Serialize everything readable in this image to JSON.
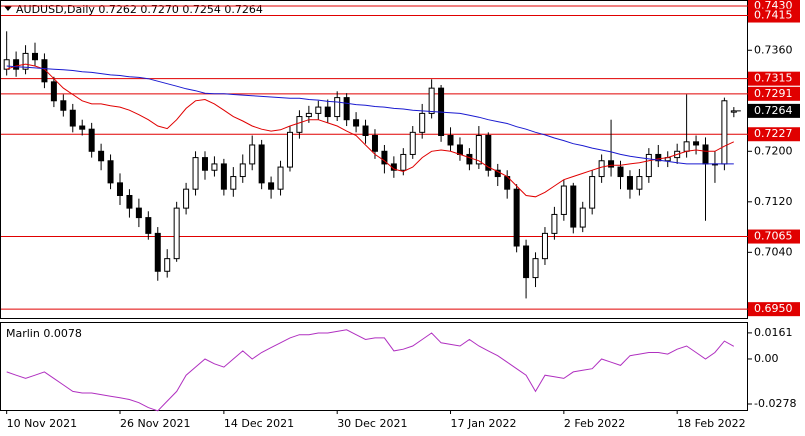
{
  "chart_data": {
    "type": "candlestick",
    "title": "AUDUSD,Daily  0.7262 0.7270 0.7254 0.7264",
    "xlim": [
      -0.6,
      78.5
    ],
    "xticks": [
      {
        "value": 0,
        "label": "10 Nov 2021"
      },
      {
        "value": 12,
        "label": "26 Nov 2021"
      },
      {
        "value": 23,
        "label": "14 Dec 2021"
      },
      {
        "value": 35,
        "label": "30 Dec 2021"
      },
      {
        "value": 47,
        "label": "17 Jan 2022"
      },
      {
        "value": 59,
        "label": "2 Feb 2022"
      },
      {
        "value": 71,
        "label": "18 Feb 2022"
      }
    ],
    "ylim": [
      0.6936,
      0.7438
    ],
    "yticks": [
      {
        "value": 0.736,
        "label": "0.7360"
      },
      {
        "value": 0.72,
        "label": "0.7200"
      },
      {
        "value": 0.712,
        "label": "0.7120"
      },
      {
        "value": 0.704,
        "label": "0.7040"
      }
    ],
    "up_color": "#ffffff",
    "down_color": "#000000",
    "open": [
      0.733,
      0.7345,
      0.733,
      0.7355,
      0.7345,
      0.731,
      0.728,
      0.7265,
      0.724,
      0.7235,
      0.72,
      0.7185,
      0.715,
      0.713,
      0.711,
      0.7095,
      0.707,
      0.701,
      0.703,
      0.711,
      0.714,
      0.719,
      0.717,
      0.718,
      0.714,
      0.716,
      0.718,
      0.721,
      0.715,
      0.714,
      0.7175,
      0.723,
      0.7255,
      0.726,
      0.727,
      0.7255,
      0.7285,
      0.725,
      0.724,
      0.7225,
      0.72,
      0.718,
      0.717,
      0.7195,
      0.723,
      0.726,
      0.73,
      0.7225,
      0.721,
      0.7195,
      0.718,
      0.7225,
      0.717,
      0.716,
      0.714,
      0.705,
      0.7,
      0.703,
      0.707,
      0.71,
      0.7145,
      0.708,
      0.711,
      0.716,
      0.7185,
      0.7175,
      0.716,
      0.714,
      0.716,
      0.7195,
      0.7185,
      0.719,
      0.72,
      0.7215,
      0.721,
      0.718,
      0.718,
      0.7262
    ],
    "high": [
      0.739,
      0.7358,
      0.7368,
      0.7372,
      0.7355,
      0.7318,
      0.729,
      0.7275,
      0.725,
      0.7245,
      0.7212,
      0.7195,
      0.7165,
      0.714,
      0.7125,
      0.7105,
      0.708,
      0.7045,
      0.712,
      0.715,
      0.72,
      0.72,
      0.7192,
      0.7188,
      0.7175,
      0.7195,
      0.7225,
      0.7218,
      0.716,
      0.7185,
      0.724,
      0.7265,
      0.7272,
      0.728,
      0.7282,
      0.7295,
      0.7292,
      0.7262,
      0.725,
      0.7235,
      0.721,
      0.7192,
      0.7205,
      0.724,
      0.7275,
      0.7314,
      0.7305,
      0.7238,
      0.7222,
      0.7205,
      0.724,
      0.723,
      0.718,
      0.717,
      0.7148,
      0.706,
      0.704,
      0.708,
      0.7112,
      0.7155,
      0.715,
      0.712,
      0.717,
      0.7195,
      0.725,
      0.7185,
      0.717,
      0.7172,
      0.7205,
      0.721,
      0.72,
      0.7212,
      0.729,
      0.7225,
      0.7222,
      0.72,
      0.7285,
      0.727
    ],
    "low": [
      0.732,
      0.7318,
      0.7322,
      0.7335,
      0.73,
      0.727,
      0.7255,
      0.723,
      0.7225,
      0.719,
      0.717,
      0.714,
      0.7115,
      0.7095,
      0.708,
      0.706,
      0.6995,
      0.7,
      0.7025,
      0.71,
      0.713,
      0.7155,
      0.716,
      0.713,
      0.7128,
      0.715,
      0.717,
      0.714,
      0.7125,
      0.713,
      0.7168,
      0.722,
      0.7245,
      0.725,
      0.7245,
      0.7248,
      0.724,
      0.723,
      0.7212,
      0.7188,
      0.7165,
      0.7158,
      0.7162,
      0.7188,
      0.722,
      0.7252,
      0.7215,
      0.72,
      0.7185,
      0.717,
      0.7172,
      0.716,
      0.7145,
      0.7125,
      0.704,
      0.6967,
      0.6985,
      0.702,
      0.706,
      0.709,
      0.707,
      0.7072,
      0.71,
      0.715,
      0.716,
      0.714,
      0.7125,
      0.713,
      0.715,
      0.7175,
      0.7175,
      0.718,
      0.719,
      0.7195,
      0.709,
      0.715,
      0.717,
      0.7254
    ],
    "close": [
      0.7345,
      0.733,
      0.7355,
      0.7345,
      0.731,
      0.728,
      0.7265,
      0.724,
      0.7235,
      0.72,
      0.7185,
      0.715,
      0.713,
      0.711,
      0.7095,
      0.707,
      0.701,
      0.703,
      0.711,
      0.714,
      0.719,
      0.717,
      0.718,
      0.714,
      0.716,
      0.718,
      0.721,
      0.715,
      0.714,
      0.7175,
      0.723,
      0.7255,
      0.726,
      0.727,
      0.7255,
      0.7285,
      0.725,
      0.724,
      0.7225,
      0.72,
      0.718,
      0.717,
      0.7195,
      0.723,
      0.726,
      0.73,
      0.7225,
      0.721,
      0.7195,
      0.718,
      0.7225,
      0.717,
      0.716,
      0.714,
      0.705,
      0.7,
      0.703,
      0.707,
      0.71,
      0.7145,
      0.708,
      0.711,
      0.716,
      0.7185,
      0.7175,
      0.716,
      0.714,
      0.716,
      0.7195,
      0.7185,
      0.719,
      0.72,
      0.7215,
      0.721,
      0.718,
      0.718,
      0.728,
      0.7264
    ],
    "series": [
      {
        "color": "#e00000",
        "values": [
          0.733,
          0.7335,
          0.7338,
          0.7335,
          0.733,
          0.7315,
          0.73,
          0.729,
          0.728,
          0.7275,
          0.7275,
          0.7272,
          0.727,
          0.7265,
          0.7258,
          0.725,
          0.724,
          0.7236,
          0.725,
          0.7268,
          0.728,
          0.7282,
          0.7275,
          0.7265,
          0.7255,
          0.7248,
          0.724,
          0.7235,
          0.7232,
          0.7234,
          0.724,
          0.7245,
          0.725,
          0.725,
          0.7245,
          0.724,
          0.7232,
          0.7225,
          0.721,
          0.7195,
          0.7185,
          0.7172,
          0.7168,
          0.7175,
          0.719,
          0.72,
          0.7202,
          0.72,
          0.7195,
          0.719,
          0.7185,
          0.7175,
          0.7168,
          0.716,
          0.7145,
          0.713,
          0.7128,
          0.7135,
          0.7145,
          0.7155,
          0.716,
          0.7165,
          0.717,
          0.7175,
          0.7178,
          0.7178,
          0.718,
          0.7182,
          0.7185,
          0.7188,
          0.719,
          0.7195,
          0.72,
          0.7202,
          0.72,
          0.72,
          0.7208,
          0.7215
        ]
      },
      {
        "color": "#1a1ad0",
        "values": [
          0.7335,
          0.7334,
          0.7333,
          0.7332,
          0.7331,
          0.733,
          0.7329,
          0.7328,
          0.7326,
          0.7325,
          0.7323,
          0.7321,
          0.732,
          0.7318,
          0.7317,
          0.7315,
          0.7311,
          0.7307,
          0.7303,
          0.7299,
          0.7296,
          0.7292,
          0.7291,
          0.7291,
          0.729,
          0.7289,
          0.7288,
          0.7287,
          0.7286,
          0.7285,
          0.7284,
          0.7284,
          0.7282,
          0.7281,
          0.7279,
          0.7278,
          0.7276,
          0.7274,
          0.7273,
          0.7271,
          0.727,
          0.7268,
          0.7267,
          0.7265,
          0.7264,
          0.7263,
          0.7262,
          0.7261,
          0.726,
          0.7257,
          0.7254,
          0.725,
          0.7247,
          0.7244,
          0.7239,
          0.7235,
          0.723,
          0.7226,
          0.7221,
          0.7217,
          0.7212,
          0.7209,
          0.7205,
          0.7202,
          0.7199,
          0.7195,
          0.7192,
          0.719,
          0.7188,
          0.7186,
          0.7184,
          0.7182,
          0.718,
          0.718,
          0.718,
          0.718,
          0.718,
          0.718
        ]
      }
    ],
    "levels": [
      {
        "value": 0.743,
        "label": "0.7430"
      },
      {
        "value": 0.7415,
        "label": "0.7415"
      },
      {
        "value": 0.7315,
        "label": "0.7315"
      },
      {
        "value": 0.7291,
        "label": "0.7291"
      },
      {
        "value": 0.7227,
        "label": "0.7227"
      },
      {
        "value": 0.7065,
        "label": "0.7065"
      },
      {
        "value": 0.695,
        "label": "0.6950"
      }
    ],
    "level_color": "#e00000",
    "last_price": {
      "value": 0.7264,
      "label": "0.7264"
    },
    "indicator": {
      "label": "Marlin 0.0078",
      "color": "#b030c0",
      "ylim": [
        -0.0315,
        0.0222
      ],
      "yticks": [
        0.0161,
        {
          "value": 0,
          "label": "0.00"
        },
        -0.0278
      ],
      "values": [
        -0.008,
        -0.01,
        -0.012,
        -0.01,
        -0.008,
        -0.012,
        -0.016,
        -0.02,
        -0.021,
        -0.021,
        -0.022,
        -0.023,
        -0.024,
        -0.025,
        -0.027,
        -0.03,
        -0.032,
        -0.026,
        -0.02,
        -0.01,
        -0.005,
        0,
        -0.003,
        -0.005,
        0,
        0.005,
        0,
        0.004,
        0.007,
        0.01,
        0.013,
        0.015,
        0.015,
        0.016,
        0.016,
        0.017,
        0.018,
        0.015,
        0.012,
        0.013,
        0.013,
        0.005,
        0.006,
        0.008,
        0.012,
        0.016,
        0.01,
        0.009,
        0.008,
        0.012,
        0.008,
        0.005,
        0.002,
        -0.002,
        -0.006,
        -0.01,
        -0.02,
        -0.01,
        -0.011,
        -0.012,
        -0.008,
        -0.007,
        -0.006,
        0,
        -0.002,
        -0.004,
        0.002,
        0.003,
        0.004,
        0.004,
        0.003,
        0.006,
        0.008,
        0.004,
        0,
        0.004,
        0.011,
        0.0078
      ]
    }
  }
}
